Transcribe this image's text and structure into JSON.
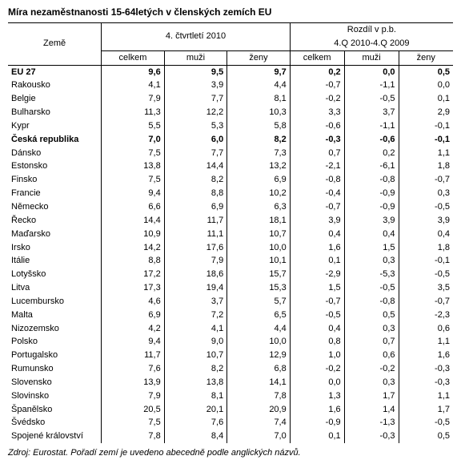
{
  "title": "Míra nezaměstnanosti 15-64letých v členských zemích EU",
  "header": {
    "country": "Země",
    "group1": "4. čtvrtletí 2010",
    "group2_line1": "Rozdíl v p.b.",
    "group2_line2": "4.Q 2010-4.Q 2009",
    "sub_celkem": "celkem",
    "sub_muzi": "muži",
    "sub_zeny": "ženy"
  },
  "footnote": "Zdroj: Eurostat. Pořadí zemí je uvedeno abecedně podle anglických názvů.",
  "rows": [
    {
      "bold": true,
      "country": "EU 27",
      "v": [
        "9,6",
        "9,5",
        "9,7",
        "0,2",
        "0,0",
        "0,5"
      ]
    },
    {
      "bold": false,
      "country": "Rakousko",
      "v": [
        "4,1",
        "3,9",
        "4,4",
        "-0,7",
        "-1,1",
        "0,0"
      ]
    },
    {
      "bold": false,
      "country": "Belgie",
      "v": [
        "7,9",
        "7,7",
        "8,1",
        "-0,2",
        "-0,5",
        "0,1"
      ]
    },
    {
      "bold": false,
      "country": "Bulharsko",
      "v": [
        "11,3",
        "12,2",
        "10,3",
        "3,3",
        "3,7",
        "2,9"
      ]
    },
    {
      "bold": false,
      "country": "Kypr",
      "v": [
        "5,5",
        "5,3",
        "5,8",
        "-0,6",
        "-1,1",
        "-0,1"
      ]
    },
    {
      "bold": true,
      "country": "Česká republika",
      "v": [
        "7,0",
        "6,0",
        "8,2",
        "-0,3",
        "-0,6",
        "-0,1"
      ]
    },
    {
      "bold": false,
      "country": "Dánsko",
      "v": [
        "7,5",
        "7,7",
        "7,3",
        "0,7",
        "0,2",
        "1,1"
      ]
    },
    {
      "bold": false,
      "country": "Estonsko",
      "v": [
        "13,8",
        "14,4",
        "13,2",
        "-2,1",
        "-6,1",
        "1,8"
      ]
    },
    {
      "bold": false,
      "country": "Finsko",
      "v": [
        "7,5",
        "8,2",
        "6,9",
        "-0,8",
        "-0,8",
        "-0,7"
      ]
    },
    {
      "bold": false,
      "country": "Francie",
      "v": [
        "9,4",
        "8,8",
        "10,2",
        "-0,4",
        "-0,9",
        "0,3"
      ]
    },
    {
      "bold": false,
      "country": "Německo",
      "v": [
        "6,6",
        "6,9",
        "6,3",
        "-0,7",
        "-0,9",
        "-0,5"
      ]
    },
    {
      "bold": false,
      "country": "Řecko",
      "v": [
        "14,4",
        "11,7",
        "18,1",
        "3,9",
        "3,9",
        "3,9"
      ]
    },
    {
      "bold": false,
      "country": "Maďarsko",
      "v": [
        "10,9",
        "11,1",
        "10,7",
        "0,4",
        "0,4",
        "0,4"
      ]
    },
    {
      "bold": false,
      "country": "Irsko",
      "v": [
        "14,2",
        "17,6",
        "10,0",
        "1,6",
        "1,5",
        "1,8"
      ]
    },
    {
      "bold": false,
      "country": "Itálie",
      "v": [
        "8,8",
        "7,9",
        "10,1",
        "0,1",
        "0,3",
        "-0,1"
      ]
    },
    {
      "bold": false,
      "country": "Lotyšsko",
      "v": [
        "17,2",
        "18,6",
        "15,7",
        "-2,9",
        "-5,3",
        "-0,5"
      ]
    },
    {
      "bold": false,
      "country": "Litva",
      "v": [
        "17,3",
        "19,4",
        "15,3",
        "1,5",
        "-0,5",
        "3,5"
      ]
    },
    {
      "bold": false,
      "country": "Lucembursko",
      "v": [
        "4,6",
        "3,7",
        "5,7",
        "-0,7",
        "-0,8",
        "-0,7"
      ]
    },
    {
      "bold": false,
      "country": "Malta",
      "v": [
        "6,9",
        "7,2",
        "6,5",
        "-0,5",
        "0,5",
        "-2,3"
      ]
    },
    {
      "bold": false,
      "country": "Nizozemsko",
      "v": [
        "4,2",
        "4,1",
        "4,4",
        "0,4",
        "0,3",
        "0,6"
      ]
    },
    {
      "bold": false,
      "country": "Polsko",
      "v": [
        "9,4",
        "9,0",
        "10,0",
        "0,8",
        "0,7",
        "1,1"
      ]
    },
    {
      "bold": false,
      "country": "Portugalsko",
      "v": [
        "11,7",
        "10,7",
        "12,9",
        "1,0",
        "0,6",
        "1,6"
      ]
    },
    {
      "bold": false,
      "country": "Rumunsko",
      "v": [
        "7,6",
        "8,2",
        "6,8",
        "-0,2",
        "-0,2",
        "-0,3"
      ]
    },
    {
      "bold": false,
      "country": "Slovensko",
      "v": [
        "13,9",
        "13,8",
        "14,1",
        "0,0",
        "0,3",
        "-0,3"
      ]
    },
    {
      "bold": false,
      "country": "Slovinsko",
      "v": [
        "7,9",
        "8,1",
        "7,8",
        "1,3",
        "1,7",
        "1,1"
      ]
    },
    {
      "bold": false,
      "country": "Španělsko",
      "v": [
        "20,5",
        "20,1",
        "20,9",
        "1,6",
        "1,4",
        "1,7"
      ]
    },
    {
      "bold": false,
      "country": "Švédsko",
      "v": [
        "7,5",
        "7,6",
        "7,4",
        "-0,9",
        "-1,3",
        "-0,5"
      ]
    },
    {
      "bold": false,
      "country": "Spojené království",
      "v": [
        "7,8",
        "8,4",
        "7,0",
        "0,1",
        "-0,3",
        "0,5"
      ]
    }
  ]
}
